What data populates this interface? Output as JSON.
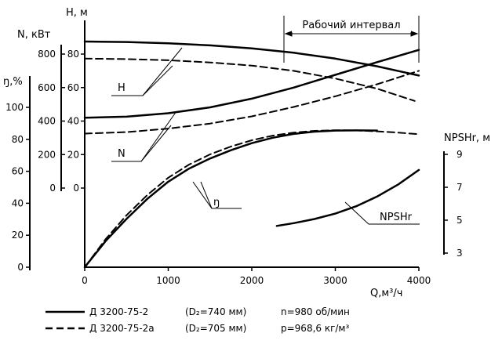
{
  "chart_data": {
    "type": "line",
    "title": "",
    "x_axis": {
      "label": "Q,м³/ч",
      "range": [
        0,
        4000
      ],
      "ticks": [
        "0",
        "1000",
        "2000",
        "3000",
        "4000"
      ]
    },
    "y_axes": [
      {
        "id": "H",
        "label": "H, м",
        "range": [
          0,
          80
        ],
        "ticks": [
          "0",
          "20",
          "40",
          "60",
          "80"
        ]
      },
      {
        "id": "N",
        "label": "N, кВт",
        "range": [
          0,
          800
        ],
        "ticks": [
          "0",
          "200",
          "400",
          "600",
          "800"
        ]
      },
      {
        "id": "eta",
        "label": "ŋ,%",
        "range": [
          0,
          100
        ],
        "ticks": [
          "0",
          "20",
          "40",
          "60",
          "80",
          "100"
        ]
      },
      {
        "id": "NPSH",
        "label": "NPSHr, м",
        "range": [
          3,
          9
        ],
        "ticks": [
          "3",
          "5",
          "7",
          "9"
        ]
      }
    ],
    "working_interval_label": "Рабочий интервал",
    "working_interval": [
      2350,
      4000
    ],
    "curve_labels": {
      "H": "H",
      "N": "N",
      "eta": "ŋ",
      "NPSH": "NPSHr"
    },
    "series": [
      {
        "curve": "H",
        "variant": "solid",
        "axis": "H",
        "x": [
          0,
          500,
          1000,
          1500,
          2000,
          2500,
          3000,
          3500,
          4000
        ],
        "y": [
          87.5,
          87.2,
          86.4,
          85.2,
          83.4,
          80.8,
          77.3,
          72.7,
          67.2
        ]
      },
      {
        "curve": "H",
        "variant": "dashed",
        "axis": "H",
        "x": [
          0,
          500,
          1000,
          1500,
          2000,
          2500,
          3000,
          3500,
          3950
        ],
        "y": [
          77.3,
          77.0,
          76.3,
          75.0,
          73.1,
          70.0,
          65.4,
          59.3,
          52.0
        ]
      },
      {
        "curve": "N",
        "variant": "solid",
        "axis": "N",
        "x": [
          0,
          500,
          1000,
          1500,
          2000,
          2500,
          3000,
          3500,
          4000
        ],
        "y": [
          420,
          426,
          447,
          482,
          534,
          600,
          676,
          752,
          825
        ]
      },
      {
        "curve": "N",
        "variant": "dashed",
        "axis": "N",
        "x": [
          0,
          500,
          1000,
          1500,
          2000,
          2500,
          3000,
          3500,
          4000
        ],
        "y": [
          325,
          334,
          355,
          385,
          428,
          484,
          548,
          620,
          700
        ]
      },
      {
        "curve": "eta",
        "variant": "solid",
        "axis": "eta",
        "x": [
          0,
          250,
          500,
          750,
          1000,
          1250,
          1500,
          1750,
          2000,
          2250,
          2500,
          2750,
          3000,
          3250,
          3500
        ],
        "y": [
          0,
          16.3,
          30.2,
          42.8,
          53.5,
          61.7,
          68.0,
          73.2,
          77.6,
          81.0,
          83.4,
          84.8,
          85.5,
          85.6,
          85.5
        ]
      },
      {
        "curve": "eta",
        "variant": "dashed",
        "axis": "eta",
        "x": [
          0,
          250,
          500,
          750,
          1000,
          1250,
          1500,
          1750,
          2000,
          2250,
          2500,
          2750,
          3000,
          3250,
          3500,
          3750,
          4000
        ],
        "y": [
          0,
          17.5,
          32.5,
          45.2,
          56.0,
          64.2,
          70.6,
          75.5,
          79.4,
          82.3,
          84.2,
          85.3,
          85.7,
          85.6,
          85.0,
          84.2,
          83.2
        ]
      },
      {
        "curve": "NPSH",
        "variant": "solid",
        "axis": "NPSH",
        "x": [
          2300,
          2500,
          2750,
          3000,
          3250,
          3500,
          3750,
          4000
        ],
        "y": [
          4.65,
          4.82,
          5.07,
          5.4,
          5.85,
          6.44,
          7.16,
          8.05
        ]
      }
    ],
    "legend": {
      "position": "bottom-left",
      "entries": [
        {
          "line": "solid",
          "pump": "Д 3200-75-2",
          "diameter": "(D₂=740 мм)",
          "param": "n=980 об/мин"
        },
        {
          "line": "dashed",
          "pump": "Д 3200-75-2а",
          "diameter": "(D₂=705 мм)",
          "param": "p=968,6 кг/м³"
        }
      ]
    },
    "grid": false
  }
}
